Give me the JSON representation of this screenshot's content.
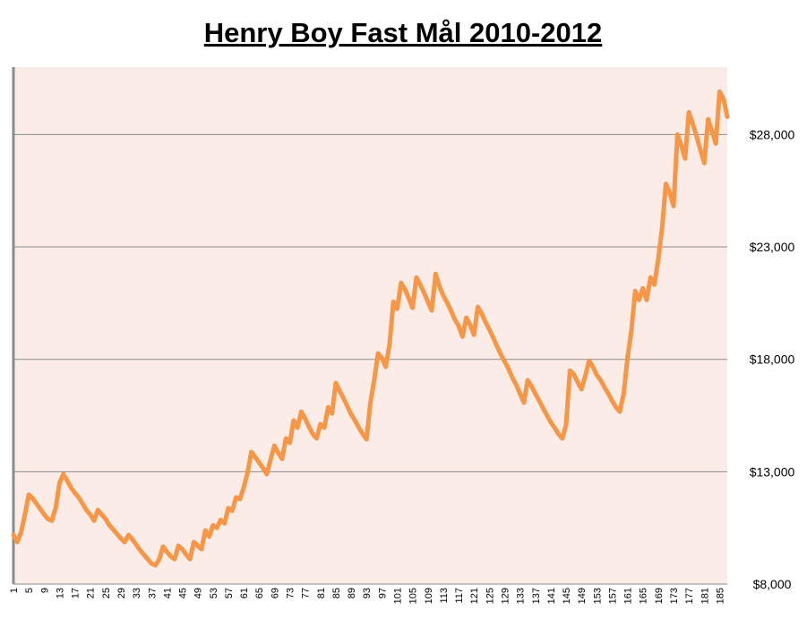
{
  "chart_data": {
    "type": "line",
    "title": "Henry Boy Fast Mål 2010-2012",
    "x": [
      1,
      2,
      3,
      4,
      5,
      6,
      7,
      8,
      9,
      10,
      11,
      12,
      13,
      14,
      15,
      16,
      17,
      18,
      19,
      20,
      21,
      22,
      23,
      24,
      25,
      26,
      27,
      28,
      29,
      30,
      31,
      32,
      33,
      34,
      35,
      36,
      37,
      38,
      39,
      40,
      41,
      42,
      43,
      44,
      45,
      46,
      47,
      48,
      49,
      50,
      51,
      52,
      53,
      54,
      55,
      56,
      57,
      58,
      59,
      60,
      61,
      62,
      63,
      64,
      65,
      66,
      67,
      68,
      69,
      70,
      71,
      72,
      73,
      74,
      75,
      76,
      77,
      78,
      79,
      80,
      81,
      82,
      83,
      84,
      85,
      86,
      87,
      88,
      89,
      90,
      91,
      92,
      93,
      94,
      95,
      96,
      97,
      98,
      99,
      100,
      101,
      102,
      103,
      104,
      105,
      106,
      107,
      108,
      109,
      110,
      111,
      112,
      113,
      114,
      115,
      116,
      117,
      118,
      119,
      120,
      121,
      122,
      123,
      124,
      125,
      126,
      127,
      128,
      129,
      130,
      131,
      132,
      133,
      134,
      135,
      136,
      137,
      138,
      139,
      140,
      141,
      142,
      143,
      144,
      145,
      146,
      147,
      148,
      149,
      150,
      151,
      152,
      153,
      154,
      155,
      156,
      157,
      158,
      159,
      160,
      161,
      162,
      163,
      164,
      165,
      166,
      167,
      168,
      169,
      170,
      171,
      172,
      173,
      174,
      175,
      176,
      177,
      178,
      179,
      180,
      181,
      182,
      183,
      184,
      185,
      186,
      187
    ],
    "series": [
      {
        "color": "#f79646",
        "values": [
          10190,
          9870,
          10310,
          11100,
          11980,
          11820,
          11580,
          11340,
          11100,
          10900,
          10820,
          11380,
          12490,
          12890,
          12610,
          12290,
          12060,
          11860,
          11580,
          11300,
          11100,
          10820,
          11300,
          11100,
          10900,
          10620,
          10430,
          10230,
          10030,
          9870,
          10190,
          9990,
          9750,
          9510,
          9310,
          9110,
          8910,
          8840,
          9110,
          9670,
          9430,
          9230,
          9110,
          9710,
          9550,
          9310,
          9110,
          9870,
          9710,
          9550,
          10390,
          10110,
          10620,
          10500,
          10860,
          10700,
          11380,
          11260,
          11860,
          11780,
          12290,
          12970,
          13880,
          13650,
          13410,
          13170,
          12890,
          13530,
          14160,
          13840,
          13570,
          14480,
          14280,
          15280,
          14960,
          15670,
          15360,
          15000,
          14680,
          14480,
          15120,
          14960,
          15870,
          15590,
          16950,
          16590,
          16270,
          15910,
          15550,
          15280,
          14960,
          14680,
          14440,
          16070,
          17070,
          18260,
          18060,
          17660,
          18660,
          20560,
          20250,
          21400,
          21120,
          20720,
          20290,
          21640,
          21320,
          20960,
          20560,
          20170,
          21800,
          21240,
          20840,
          20520,
          20170,
          19770,
          19490,
          19010,
          19850,
          19530,
          19090,
          20330,
          20050,
          19650,
          19330,
          18970,
          18580,
          18220,
          17900,
          17580,
          17180,
          16870,
          16470,
          16070,
          17070,
          16790,
          16470,
          16150,
          15830,
          15510,
          15200,
          14960,
          14680,
          14480,
          15080,
          17500,
          17340,
          16990,
          16670,
          17260,
          17940,
          17660,
          17300,
          17070,
          16750,
          16470,
          16150,
          15870,
          15670,
          16470,
          18060,
          19250,
          21040,
          20640,
          21160,
          20640,
          21640,
          21320,
          22430,
          23820,
          25810,
          25410,
          24820,
          28000,
          27520,
          26930,
          28990,
          28480,
          27920,
          27320,
          26730,
          28680,
          28160,
          27600,
          29910,
          29590,
          28790
        ]
      }
    ],
    "xlim": [
      1,
      187
    ],
    "xticks": [
      1,
      5,
      9,
      13,
      17,
      21,
      25,
      29,
      33,
      37,
      41,
      45,
      49,
      53,
      57,
      61,
      65,
      69,
      73,
      77,
      81,
      85,
      89,
      93,
      97,
      101,
      105,
      109,
      113,
      117,
      121,
      125,
      129,
      133,
      137,
      141,
      145,
      149,
      153,
      157,
      161,
      165,
      169,
      173,
      177,
      181,
      185
    ],
    "ylim": [
      8000,
      31000
    ],
    "yticks": [
      {
        "value": 8000,
        "label": "$8,000"
      },
      {
        "value": 13000,
        "label": "$13,000"
      },
      {
        "value": 18000,
        "label": "$18,000"
      },
      {
        "value": 23000,
        "label": "$23,000"
      },
      {
        "value": 28000,
        "label": "$28,000"
      }
    ],
    "grid": true
  }
}
